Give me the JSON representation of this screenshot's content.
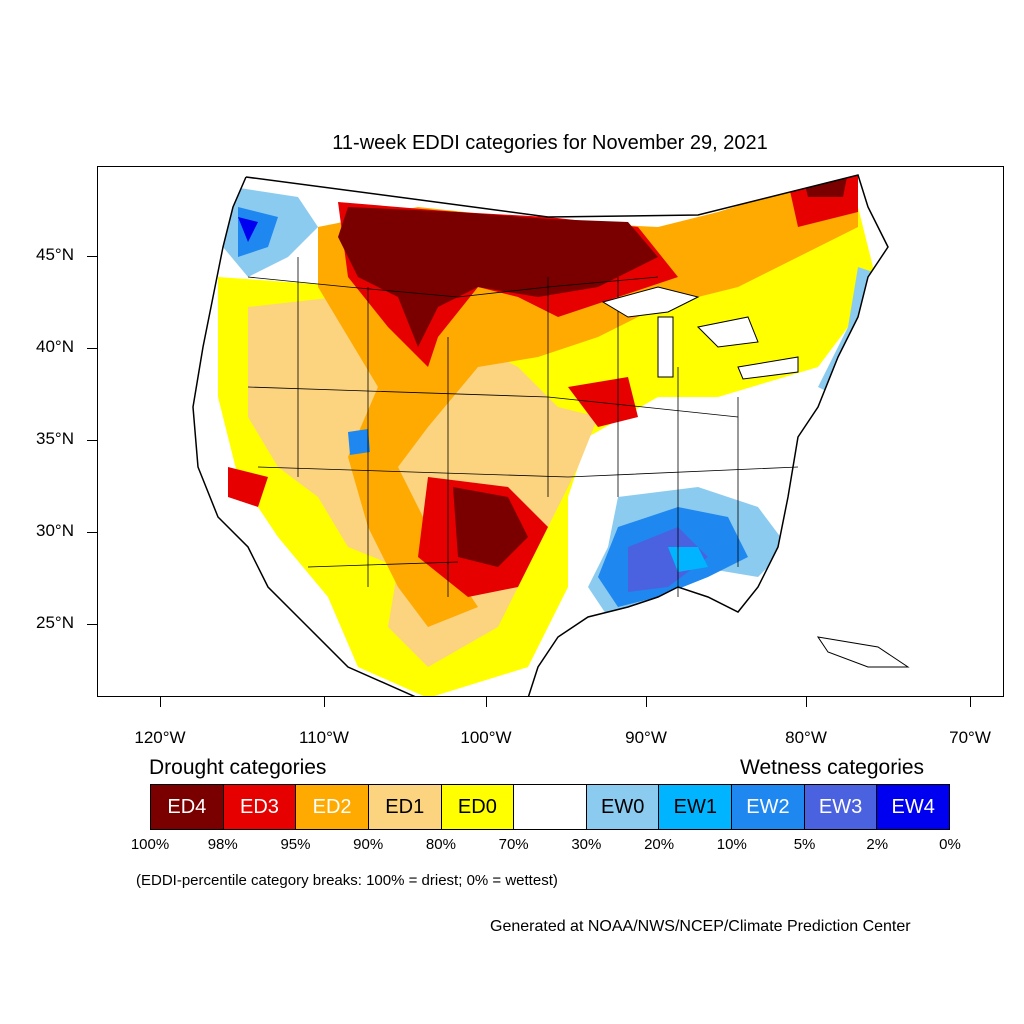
{
  "title": "11-week EDDI categories for November 29, 2021",
  "axes": {
    "lat_labels": [
      "45°N",
      "40°N",
      "35°N",
      "30°N",
      "25°N"
    ],
    "lon_labels": [
      "120°W",
      "110°W",
      "100°W",
      "90°W",
      "80°W",
      "70°W"
    ]
  },
  "legend": {
    "drought_heading": "Drought categories",
    "wetness_heading": "Wetness categories",
    "categories": [
      {
        "label": "ED4",
        "color": "#7a0000",
        "text_color": "#ffffff"
      },
      {
        "label": "ED3",
        "color": "#e60000",
        "text_color": "#ffffff"
      },
      {
        "label": "ED2",
        "color": "#ffaa00",
        "text_color": "#ffffff"
      },
      {
        "label": "ED1",
        "color": "#fcd37f",
        "text_color": "#000000"
      },
      {
        "label": "ED0",
        "color": "#ffff00",
        "text_color": "#000000"
      },
      {
        "label": "",
        "color": "#ffffff",
        "text_color": "#000000"
      },
      {
        "label": "EW0",
        "color": "#8ccbf0",
        "text_color": "#000000"
      },
      {
        "label": "EW1",
        "color": "#00b4ff",
        "text_color": "#000000"
      },
      {
        "label": "EW2",
        "color": "#1e88f0",
        "text_color": "#ffffff"
      },
      {
        "label": "EW3",
        "color": "#4a62e0",
        "text_color": "#ffffff"
      },
      {
        "label": "EW4",
        "color": "#0000f0",
        "text_color": "#ffffff"
      }
    ],
    "percentiles": [
      "100%",
      "98%",
      "95%",
      "90%",
      "80%",
      "70%",
      "30%",
      "20%",
      "10%",
      "5%",
      "2%",
      "0%"
    ]
  },
  "breaks_note": "(EDDI-percentile category breaks: 100% = driest; 0% = wettest)",
  "credit": "Generated at NOAA/NWS/NCEP/Climate Prediction Center"
}
